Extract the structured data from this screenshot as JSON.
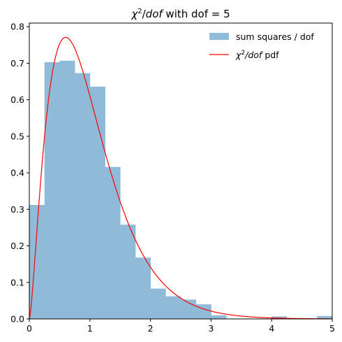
{
  "chart_data": {
    "type": "bar",
    "title_main": "χ",
    "title_sup": "2",
    "title_rest": "/",
    "title_italic": "dof",
    "title_tail": " with dof = 5",
    "xlim": [
      0,
      5
    ],
    "ylim": [
      0,
      0.81
    ],
    "xticks": [
      "0",
      "1",
      "2",
      "3",
      "4",
      "5"
    ],
    "yticks": [
      "0.0",
      "0.1",
      "0.2",
      "0.3",
      "0.4",
      "0.5",
      "0.6",
      "0.7",
      "0.8"
    ],
    "legend_position": "top-right",
    "histogram": {
      "name": "sum squares / dof",
      "color": "#8fbbd9",
      "bin_width": 0.25,
      "bin_starts": [
        0,
        0.25,
        0.5,
        0.75,
        1.0,
        1.25,
        1.5,
        1.75,
        2.0,
        2.25,
        2.5,
        2.75,
        3.0,
        3.25,
        3.5,
        3.75,
        4.0,
        4.25,
        4.5,
        4.75
      ],
      "values": [
        0.312,
        0.703,
        0.707,
        0.673,
        0.636,
        0.416,
        0.258,
        0.168,
        0.083,
        0.062,
        0.053,
        0.04,
        0.01,
        0.0,
        0.0,
        0.0,
        0.007,
        0.0,
        0.0,
        0.008
      ]
    },
    "curve": {
      "name_prefix": "χ",
      "name_sup": "2",
      "name_italic": "/dof",
      "name_tail": " pdf",
      "color": "#ff0000",
      "dof": 5
    }
  }
}
